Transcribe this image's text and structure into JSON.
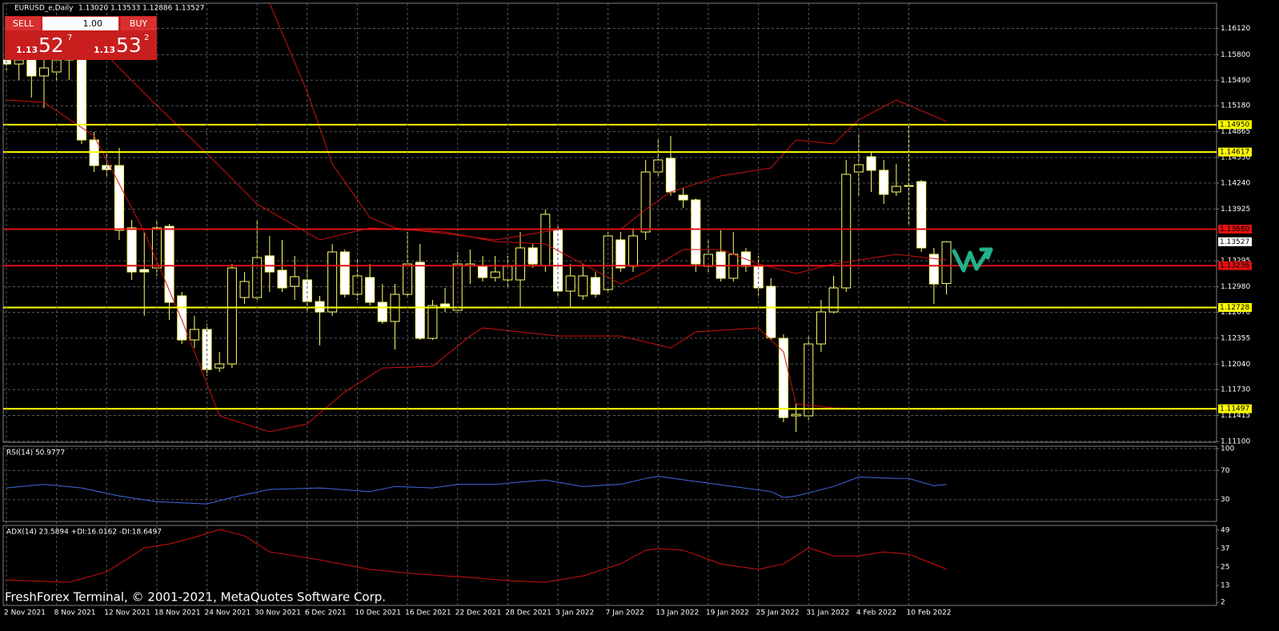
{
  "header": {
    "symbol": "EURUSD_e,Daily",
    "ohlc_text": "1.13020 1.13533 1.12886 1.13527"
  },
  "trade_panel": {
    "sell": "SELL",
    "buy": "BUY",
    "volume": "1.00",
    "bid_prefix": "1.13",
    "bid_big": "52",
    "bid_small": "7",
    "ask_prefix": "1.13",
    "ask_big": "53",
    "ask_small": "2"
  },
  "watermark": "FreshForex Terminal, © 2001-2021, MetaQuotes Software Corp.",
  "chart_data": [
    {
      "type": "candlestick",
      "categories": [
        "2 Nov 2021",
        null,
        null,
        null,
        "8 Nov 2021",
        null,
        null,
        null,
        "12 Nov 2021",
        null,
        null,
        null,
        "18 Nov 2021",
        null,
        null,
        null,
        "24 Nov 2021",
        null,
        null,
        null,
        "30 Nov 2021",
        null,
        null,
        null,
        "6 Dec 2021",
        null,
        null,
        null,
        "10 Dec 2021",
        null,
        null,
        null,
        "16 Dec 2021",
        null,
        null,
        null,
        "22 Dec 2021",
        null,
        null,
        null,
        "28 Dec 2021",
        null,
        null,
        null,
        "3 Jan 2022",
        null,
        null,
        null,
        "7 Jan 2022",
        null,
        null,
        null,
        "13 Jan 2022",
        null,
        null,
        null,
        "19 Jan 2022",
        null,
        null,
        null,
        "25 Jan 2022",
        null,
        null,
        null,
        "31 Jan 2022",
        null,
        null,
        null,
        "4 Feb 2022",
        null,
        null,
        null,
        "10 Feb 2022",
        null,
        null,
        null
      ],
      "open": [
        1.15736,
        1.15687,
        1.15736,
        1.15542,
        1.1559,
        1.15736,
        1.15785,
        1.14764,
        1.14453,
        1.14453,
        1.13695,
        1.13189,
        1.13209,
        1.13714,
        1.12869,
        1.12334,
        1.12461,
        1.11993,
        1.12042,
        1.12849,
        1.12849,
        1.13355,
        1.1318,
        1.12985,
        1.13063,
        1.128,
        1.12674,
        1.13403,
        1.12888,
        1.13092,
        1.12791,
        1.12558,
        1.12888,
        1.13277,
        1.12353,
        1.12771,
        1.12694,
        1.13238,
        1.13228,
        1.13092,
        1.13063,
        1.13063,
        1.13452,
        1.13238,
        1.13675,
        1.12927,
        1.12869,
        1.13092,
        1.12946,
        1.13549,
        1.13228,
        1.13646,
        1.14375,
        1.1454,
        1.14093,
        1.14035,
        1.13228,
        1.13403,
        1.13083,
        1.13403,
        1.13228,
        1.12985,
        1.12353,
        1.11411,
        1.11411,
        1.12285,
        1.12674,
        1.12966,
        1.14375,
        1.1456,
        1.14395,
        1.14132,
        1.1421,
        1.14258,
        1.13374,
        1.1302
      ],
      "high": [
        1.15882,
        1.1593,
        1.15882,
        1.1593,
        1.15979,
        1.16028,
        1.15882,
        1.14861,
        1.14618,
        1.14667,
        1.13792,
        1.13646,
        1.13792,
        1.13743,
        1.12917,
        1.12626,
        1.12529,
        1.12188,
        1.13257,
        1.1316,
        1.13792,
        1.13598,
        1.13549,
        1.13355,
        1.13257,
        1.12869,
        1.135,
        1.13432,
        1.13306,
        1.13257,
        1.13014,
        1.13014,
        1.13646,
        1.135,
        1.1282,
        1.12966,
        1.13403,
        1.13432,
        1.13355,
        1.13355,
        1.13355,
        1.13646,
        1.135,
        1.13918,
        1.13743,
        1.13257,
        1.13257,
        1.1316,
        1.13646,
        1.13646,
        1.13695,
        1.14521,
        1.14764,
        1.14813,
        1.14181,
        1.14054,
        1.13549,
        1.13666,
        1.13646,
        1.13452,
        1.13355,
        1.13083,
        1.12402,
        1.11556,
        1.12381,
        1.1282,
        1.13112,
        1.14521,
        1.14832,
        1.14618,
        1.14521,
        1.14472,
        1.14958,
        1.14278,
        1.13452,
        1.13533
      ],
      "low": [
        1.1559,
        1.15493,
        1.15279,
        1.15153,
        1.15493,
        1.15493,
        1.14715,
        1.14375,
        1.14327,
        1.13549,
        1.13063,
        1.12626,
        1.13112,
        1.12577,
        1.12285,
        1.12237,
        1.11897,
        1.11945,
        1.11993,
        1.12771,
        1.1282,
        1.12917,
        1.12917,
        1.1282,
        1.12674,
        1.12266,
        1.12626,
        1.12849,
        1.1282,
        1.12752,
        1.12529,
        1.12217,
        1.12849,
        1.12334,
        1.12334,
        1.12674,
        1.12655,
        1.13014,
        1.13044,
        1.13044,
        1.12966,
        1.12723,
        1.13209,
        1.1316,
        1.12869,
        1.12723,
        1.1282,
        1.12849,
        1.12917,
        1.1316,
        1.1316,
        1.13549,
        1.14327,
        1.14084,
        1.13938,
        1.1316,
        1.1316,
        1.13044,
        1.13044,
        1.1316,
        1.12869,
        1.12334,
        1.11333,
        1.11216,
        1.11362,
        1.12188,
        1.12655,
        1.12917,
        1.14084,
        1.14132,
        1.13986,
        1.14084,
        1.13724,
        1.13403,
        1.12771,
        1.12886
      ],
      "close": [
        1.15687,
        1.15736,
        1.15542,
        1.15639,
        1.15736,
        1.15785,
        1.14764,
        1.14453,
        1.14404,
        1.13666,
        1.1316,
        1.1316,
        1.13695,
        1.12791,
        1.12334,
        1.12461,
        1.11974,
        1.12042,
        1.13209,
        1.13044,
        1.13335,
        1.1316,
        1.12966,
        1.13102,
        1.128,
        1.12674,
        1.13403,
        1.12888,
        1.13112,
        1.12791,
        1.12558,
        1.12888,
        1.13257,
        1.12353,
        1.12752,
        1.12742,
        1.13257,
        1.13257,
        1.13092,
        1.1316,
        1.13228,
        1.13452,
        1.13257,
        1.1386,
        1.12927,
        1.13112,
        1.13112,
        1.12888,
        1.13598,
        1.13209,
        1.13598,
        1.14375,
        1.14521,
        1.14132,
        1.14035,
        1.13257,
        1.13374,
        1.13083,
        1.13374,
        1.13228,
        1.12966,
        1.12363,
        1.11391,
        1.1143,
        1.12285,
        1.12674,
        1.12966,
        1.14346,
        1.14463,
        1.14395,
        1.14103,
        1.142,
        1.142,
        1.13452,
        1.13014,
        1.13527
      ],
      "up_color": "#000000",
      "down_color": "#ffffff",
      "wick_color": "#ffff66",
      "ylim": [
        1.1109,
        1.16426
      ],
      "yticks": [
        {
          "value": 1.1612,
          "label": "1.16120"
        },
        {
          "value": 1.158,
          "label": "1.15800"
        },
        {
          "value": 1.1549,
          "label": "1.15490"
        },
        {
          "value": 1.1518,
          "label": "1.15180"
        },
        1.14865,
        {
          "value": 1.1455,
          "label": "1.14550"
        },
        {
          "value": 1.1424,
          "label": "1.14240"
        },
        1.13925,
        1.13295,
        {
          "value": 1.1298,
          "label": "1.12980"
        },
        {
          "value": 1.1267,
          "label": "1.12670"
        },
        1.12355,
        {
          "value": 1.1204,
          "label": "1.12040"
        },
        {
          "value": 1.1173,
          "label": "1.11730"
        },
        1.11415,
        {
          "value": 1.111,
          "label": "1.11100"
        }
      ],
      "grid": true,
      "bands": [
        {
          "color": "#d01010",
          "x": [
            21,
            24,
            26,
            29,
            31,
            35,
            39,
            44,
            49,
            51,
            53,
            57,
            61,
            63,
            66,
            68,
            71,
            75
          ],
          "values": [
            1.16426,
            1.15347,
            1.14472,
            1.13821,
            1.13695,
            1.13627,
            1.13549,
            1.13675,
            1.13675,
            1.13918,
            1.14132,
            1.14327,
            1.14424,
            1.14764,
            1.14715,
            1.15007,
            1.1525,
            1.14988
          ]
        },
        {
          "color": "#d01010",
          "x": [
            6,
            9,
            12,
            16,
            20,
            25,
            29,
            35,
            39,
            43,
            46,
            49,
            51,
            54,
            57,
            60,
            63,
            66,
            71,
            75
          ],
          "values": [
            1.16125,
            1.15639,
            1.15182,
            1.14599,
            1.13986,
            1.13549,
            1.13695,
            1.13646,
            1.1353,
            1.135,
            1.13257,
            1.13014,
            1.1316,
            1.13432,
            1.13432,
            1.13257,
            1.13141,
            1.13257,
            1.13374,
            1.13306
          ]
        },
        {
          "color": "#d01010",
          "x": [
            0,
            3,
            7,
            11,
            14,
            17,
            21,
            24,
            27,
            30,
            34,
            37,
            38,
            44,
            49,
            53,
            55,
            60,
            62,
            63,
            66,
            75
          ],
          "values": [
            1.1525,
            1.15221,
            1.14813,
            1.13646,
            1.12577,
            1.11411,
            1.11216,
            1.11313,
            1.11702,
            1.11993,
            1.12013,
            1.12381,
            1.1248,
            1.12381,
            1.12381,
            1.12237,
            1.12431,
            1.1248,
            1.12188,
            1.11556,
            1.11507,
            1.11488
          ]
        }
      ],
      "levels": [
        {
          "value": 1.1495,
          "label": "1.14950",
          "color": "#ffff00"
        },
        {
          "value": 1.14617,
          "label": "1.14617",
          "color": "#ffff00"
        },
        {
          "value": 1.1368,
          "label": "1.13680",
          "color": "#e01010"
        },
        {
          "value": 1.13236,
          "label": "1.13236",
          "color": "#e01010"
        },
        {
          "value": 1.12728,
          "label": "1.12728",
          "color": "#ffff00"
        },
        {
          "value": 1.11497,
          "label": "1.11497",
          "color": "#ffff00"
        }
      ],
      "current_price": 1.13527
    },
    {
      "type": "line",
      "title": "RSI(14) 50.9777",
      "color": "#4169e1",
      "x": [
        0,
        3,
        6,
        9,
        12,
        16,
        18,
        21,
        25,
        29,
        31,
        34,
        36,
        39,
        43,
        46,
        49,
        51,
        52,
        55,
        58,
        61,
        62,
        63,
        66,
        68,
        71,
        72,
        74,
        75
      ],
      "values": [
        46,
        51,
        46,
        35,
        27,
        24,
        33,
        44,
        46,
        41,
        48,
        46,
        51,
        51,
        57,
        48,
        51,
        59,
        62,
        55,
        48,
        41,
        33,
        35,
        48,
        61,
        59,
        59,
        49,
        50.9777
      ],
      "ylim": [
        0,
        100
      ],
      "yticks": [
        100,
        70,
        30
      ],
      "grid": true
    },
    {
      "type": "line",
      "title": "ADX(14) 23.5894 +DI:16.0162 -DI:18.6497",
      "color": "#d01010",
      "x": [
        0,
        5,
        8,
        11,
        13,
        15,
        17,
        19,
        21,
        25,
        29,
        33,
        37,
        40,
        43,
        46,
        49,
        51,
        52,
        54,
        57,
        60,
        62,
        64,
        66,
        68,
        70,
        72,
        75
      ],
      "values": [
        16.6,
        15.1,
        21.8,
        37.4,
        40,
        44.2,
        49.4,
        45.2,
        34.8,
        29.6,
        23.4,
        20.3,
        18.2,
        16.1,
        15.1,
        19.2,
        27,
        35.9,
        36.9,
        35.9,
        27,
        23.4,
        27,
        37.4,
        32.2,
        32.2,
        34.8,
        33.3,
        23.5894
      ],
      "ylim": [
        0,
        52
      ],
      "yticks": [
        49,
        37,
        25,
        13,
        2
      ],
      "grid": false
    }
  ]
}
